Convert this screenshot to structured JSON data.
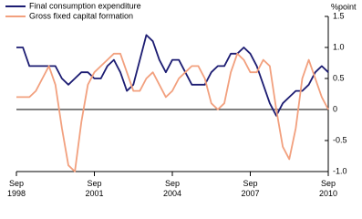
{
  "chart_data": {
    "type": "line",
    "y_unit_label": "%point",
    "categories": [
      "Sep 1998",
      null,
      null,
      null,
      null,
      null,
      null,
      null,
      null,
      null,
      null,
      null,
      "Sep 2001",
      null,
      null,
      null,
      null,
      null,
      null,
      null,
      null,
      null,
      null,
      null,
      "Sep 2004",
      null,
      null,
      null,
      null,
      null,
      null,
      null,
      null,
      null,
      null,
      null,
      "Sep 2007",
      null,
      null,
      null,
      null,
      null,
      null,
      null,
      null,
      null,
      null,
      null,
      "Sep 2010"
    ],
    "series": [
      {
        "name": "Final consumption expenditure",
        "color": "#1c1c72",
        "values": [
          1.0,
          1.0,
          0.7,
          0.7,
          0.7,
          0.7,
          0.7,
          0.5,
          0.4,
          0.5,
          0.6,
          0.6,
          0.5,
          0.5,
          0.7,
          0.8,
          0.6,
          0.3,
          0.4,
          0.8,
          1.2,
          1.1,
          0.8,
          0.6,
          0.8,
          0.8,
          0.6,
          0.4,
          0.4,
          0.4,
          0.6,
          0.7,
          0.7,
          0.9,
          0.9,
          1.0,
          0.9,
          0.7,
          0.4,
          0.1,
          -0.1,
          0.1,
          0.2,
          0.3,
          0.3,
          0.4,
          0.6,
          0.7,
          0.6
        ]
      },
      {
        "name": "Gross fixed capital formation",
        "color": "#f2a07e",
        "values": [
          0.2,
          0.2,
          0.2,
          0.3,
          0.5,
          0.7,
          0.4,
          -0.3,
          -0.9,
          -1.0,
          -0.2,
          0.4,
          0.6,
          0.7,
          0.8,
          0.9,
          0.9,
          0.6,
          0.3,
          0.3,
          0.5,
          0.6,
          0.4,
          0.2,
          0.3,
          0.5,
          0.6,
          0.7,
          0.7,
          0.5,
          0.1,
          0.0,
          0.1,
          0.6,
          0.9,
          0.8,
          0.6,
          0.6,
          0.8,
          0.7,
          0.0,
          -0.6,
          -0.8,
          -0.3,
          0.5,
          0.8,
          0.5,
          0.2,
          0.0
        ]
      }
    ],
    "ylim": [
      -1.0,
      1.5
    ],
    "yticks": [
      1.5,
      {
        "value": 1.0,
        "label": "1.0"
      },
      0.5,
      0,
      -0.5,
      {
        "value": -1.0,
        "label": "-1.0"
      }
    ],
    "zero_line": true,
    "legend": "top-left"
  }
}
